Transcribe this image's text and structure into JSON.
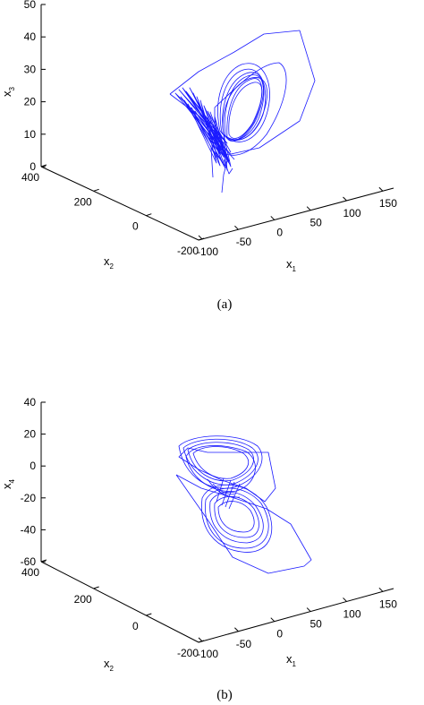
{
  "chart_data": [
    {
      "type": "line",
      "projection": "3d",
      "caption": "(a)",
      "series_color": "#1a1aff",
      "axes": {
        "x": {
          "label": "x",
          "label_sub": "1",
          "ticks": [
            "-100",
            "-50",
            "0",
            "50",
            "100",
            "150"
          ]
        },
        "y": {
          "label": "x",
          "label_sub": "2",
          "ticks": [
            "-200",
            "0",
            "200",
            "400"
          ]
        },
        "z": {
          "label": "x",
          "label_sub": "3",
          "ticks": [
            "0",
            "10",
            "20",
            "30",
            "40",
            "50"
          ]
        }
      },
      "xlim": [
        -100,
        150
      ],
      "ylim": [
        -200,
        400
      ],
      "zlim": [
        0,
        50
      ]
    },
    {
      "type": "line",
      "projection": "3d",
      "caption": "(b)",
      "series_color": "#1a1aff",
      "axes": {
        "x": {
          "label": "x",
          "label_sub": "1",
          "ticks": [
            "-100",
            "-50",
            "0",
            "50",
            "100",
            "150"
          ]
        },
        "y": {
          "label": "x",
          "label_sub": "2",
          "ticks": [
            "-200",
            "0",
            "200",
            "400"
          ]
        },
        "z": {
          "label": "x",
          "label_sub": "4",
          "ticks": [
            "-60",
            "-40",
            "-20",
            "0",
            "20",
            "40"
          ]
        }
      },
      "xlim": [
        -100,
        150
      ],
      "ylim": [
        -200,
        400
      ],
      "zlim": [
        -60,
        40
      ]
    }
  ]
}
